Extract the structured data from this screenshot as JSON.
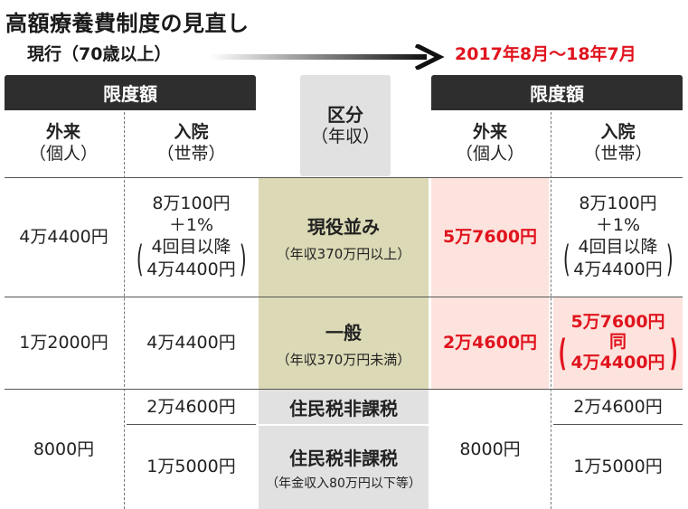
{
  "title": "高額療養費制度の見直し",
  "current_label": "現行（70歳以上）",
  "new_period_label": "2017年8月〜18年7月",
  "left": {
    "header": "限度額",
    "col_outpatient": [
      "外来",
      "（個人）"
    ],
    "col_inpatient": [
      "入院",
      "（世帯）"
    ]
  },
  "middle": {
    "header": [
      "区分",
      "（年収）"
    ]
  },
  "right": {
    "header": "限度額",
    "col_outpatient": [
      "外来",
      "（個人）"
    ],
    "col_inpatient": [
      "入院",
      "（世帯）"
    ]
  },
  "rows": [
    {
      "category": "現役並み",
      "category_note": "（年収370万円以上）",
      "old_outpatient": "4万4400円",
      "old_inpatient": [
        "8万100円",
        "＋1%",
        "4回目以降",
        "4万4400円"
      ],
      "new_outpatient": "5万7600円",
      "new_inpatient": [
        "8万100円",
        "＋1%",
        "4回目以降",
        "4万4400円"
      ]
    },
    {
      "category": "一般",
      "category_note": "（年収370万円未満）",
      "old_outpatient": "1万2000円",
      "old_inpatient": "4万4400円",
      "new_outpatient": "2万4600円",
      "new_inpatient": [
        "5万7600円",
        "同",
        "4万4400円"
      ]
    },
    {
      "category": "住民税非課税",
      "old_outpatient": "8000円",
      "old_inpatient": "2万4600円",
      "new_outpatient": "8000円",
      "new_inpatient": "2万4600円"
    },
    {
      "category": "住民税非課税",
      "category_note": "（年金収入80万円以下等）",
      "old_inpatient": "1万5000円",
      "new_inpatient": "1万5000円"
    }
  ],
  "colors": {
    "header_bg": "#2e2e2e",
    "category_bg": "#dcd9b6",
    "low_income_bg": "#e1e1e1",
    "highlight_bg": "#fde3dd",
    "highlight_text": "#e0141e"
  }
}
